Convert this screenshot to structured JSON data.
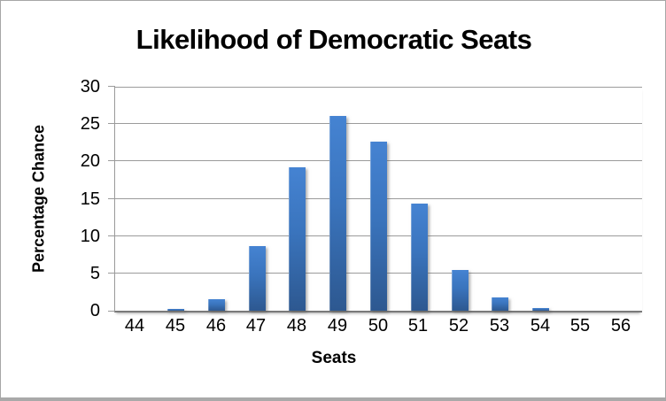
{
  "chart_data": {
    "type": "bar",
    "title": "Likelihood of Democratic Seats",
    "xlabel": "Seats",
    "ylabel": "Percentage Chance",
    "categories": [
      "44",
      "45",
      "46",
      "47",
      "48",
      "49",
      "50",
      "51",
      "52",
      "53",
      "54",
      "55",
      "56"
    ],
    "values": [
      0,
      0.2,
      1.5,
      8.6,
      19.2,
      26.1,
      22.6,
      14.4,
      5.5,
      1.8,
      0.3,
      0,
      0
    ],
    "ylim": [
      0,
      30
    ],
    "yticks": [
      0,
      5,
      10,
      15,
      20,
      25,
      30
    ],
    "grid": "horizontal",
    "legend_position": "none",
    "colors": {
      "bar_gradient_top": "#4583d2",
      "bar_gradient_bottom": "#2d5890",
      "gridline": "#9b9b9b",
      "axis_line": "#7a7a7a",
      "frame_border": "#a6a6a6",
      "text": "#000000",
      "background": "#ffffff"
    }
  }
}
